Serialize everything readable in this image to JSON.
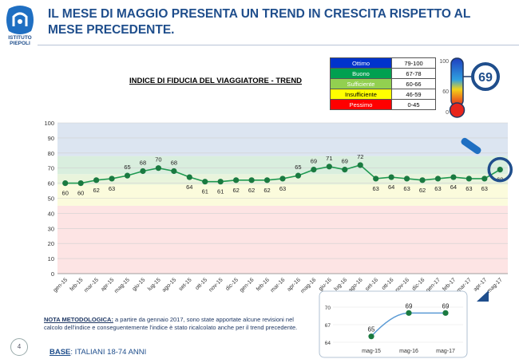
{
  "header": {
    "title": "IL MESE DI MAGGIO PRESENTA UN TREND IN CRESCITA RISPETTO AL MESE PRECEDENTE.",
    "logo_text_1": "ISTITUTO",
    "logo_text_2": "PIEPOLI"
  },
  "legend": [
    {
      "label": "Ottimo",
      "range": "79-100",
      "color": "#0033cc",
      "text_color": "#ffffff"
    },
    {
      "label": "Buono",
      "range": "67-78",
      "color": "#00a050",
      "text_color": "#ffffff"
    },
    {
      "label": "Sufficiente",
      "range": "60-66",
      "color": "#92d050",
      "text_color": "#ffffff"
    },
    {
      "label": "Insufficiente",
      "range": "46-59",
      "color": "#ffff00",
      "text_color": "#000000"
    },
    {
      "label": "Pessimo",
      "range": "0-45",
      "color": "#ff0000",
      "text_color": "#ffffff"
    }
  ],
  "thermometer": {
    "ticks": [
      "100",
      "60",
      "0"
    ],
    "value": "69"
  },
  "note": {
    "label": "NOTA METODOLOGICA:",
    "text": " a partire da gennaio 2017, sono state apportate alcune revisioni nel calcolo dell'indice e conseguentemente l'indice è stato ricalcolato anche per il trend precedente."
  },
  "base": {
    "label": "BASE",
    "text": ": ITALIANI 18-74 ANNI"
  },
  "page_number": "4",
  "chart_data": [
    {
      "type": "line",
      "title": "INDICE DI FIDUCIA DEL VIAGGIATORE - TREND",
      "ylim": [
        0,
        100
      ],
      "yticks": [
        0,
        10,
        20,
        30,
        40,
        50,
        60,
        70,
        80,
        90,
        100
      ],
      "grid": true,
      "bands": [
        {
          "from": 0,
          "to": 45,
          "color": "#fde4e4"
        },
        {
          "from": 45,
          "to": 59,
          "color": "#fbfbdc"
        },
        {
          "from": 59,
          "to": 66,
          "color": "#e9f4dc"
        },
        {
          "from": 66,
          "to": 78,
          "color": "#d9eede"
        },
        {
          "from": 78,
          "to": 100,
          "color": "#dce5f1"
        }
      ],
      "categories": [
        "gen-15",
        "feb-15",
        "mar-15",
        "apr-15",
        "mag-15",
        "giu-15",
        "lug-15",
        "ago-15",
        "set-15",
        "ott-15",
        "nov-15",
        "dic-15",
        "gen-16",
        "feb-16",
        "mar-16",
        "apr-16",
        "mag-16",
        "giu-16",
        "lug-16",
        "ago-16",
        "set-16",
        "ott-16",
        "nov-16",
        "dic-16",
        "gen-17",
        "feb-17",
        "mar-17",
        "apr-17",
        "mag-17"
      ],
      "values": [
        60,
        60,
        62,
        63,
        65,
        68,
        70,
        68,
        64,
        61,
        61,
        62,
        62,
        62,
        63,
        65,
        69,
        71,
        69,
        72,
        63,
        64,
        63,
        62,
        63,
        64,
        63,
        63,
        69
      ],
      "line_color": "#1f9950",
      "marker_color": "#1a7a40"
    },
    {
      "type": "line",
      "categories": [
        "mag-15",
        "mag-16",
        "mag-17"
      ],
      "values": [
        65,
        69,
        69
      ],
      "ylim": [
        64,
        70
      ],
      "yticks": [
        64,
        67,
        70
      ],
      "line_color": "#5b9bd5",
      "marker_color": "#1a7a40"
    }
  ]
}
